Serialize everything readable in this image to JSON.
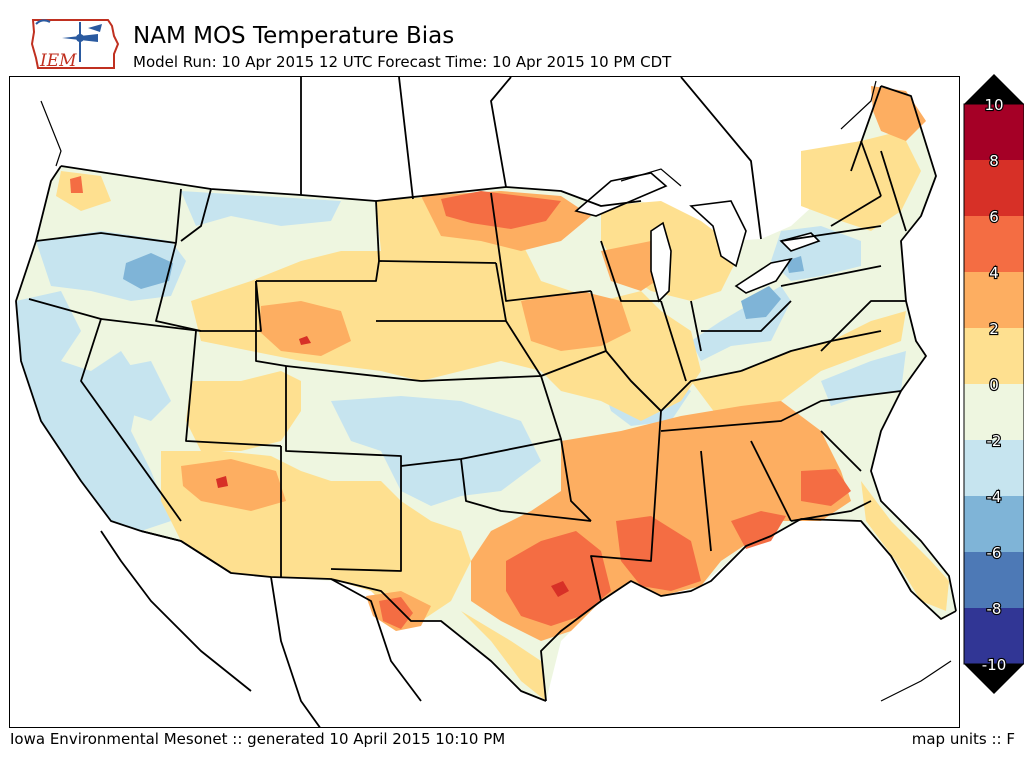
{
  "header": {
    "logo_text": "IEM",
    "title": "NAM MOS Temperature Bias",
    "subtitle": "Model Run: 10 Apr 2015 12 UTC Forecast Time: 10 Apr 2015 10 PM CDT"
  },
  "footer": {
    "credit": "Iowa Environmental Mesonet :: generated 10 April 2015 10:10 PM",
    "units": "map units :: F"
  },
  "colorbar": {
    "ticks": [
      "10",
      "8",
      "6",
      "4",
      "2",
      "0",
      "-2",
      "-4",
      "-6",
      "-8",
      "-10"
    ],
    "colors": [
      "#a50026",
      "#d73027",
      "#f46d43",
      "#fdae61",
      "#fee090",
      "#ffffbf",
      "#e0f3f8",
      "#abd9e9",
      "#74add1",
      "#4575b4",
      "#313695"
    ],
    "bin_colors_top_to_bottom": [
      "#a50026",
      "#d73027",
      "#f46d43",
      "#fdae61",
      "#fee090",
      "#eef6e0",
      "#c6e4ef",
      "#7fb4d7",
      "#4d79b6",
      "#313695"
    ],
    "over_color": "#000000",
    "under_color": "#000000"
  },
  "map": {
    "region": "Continental United States",
    "variable": "Temperature Bias",
    "units": "F"
  }
}
